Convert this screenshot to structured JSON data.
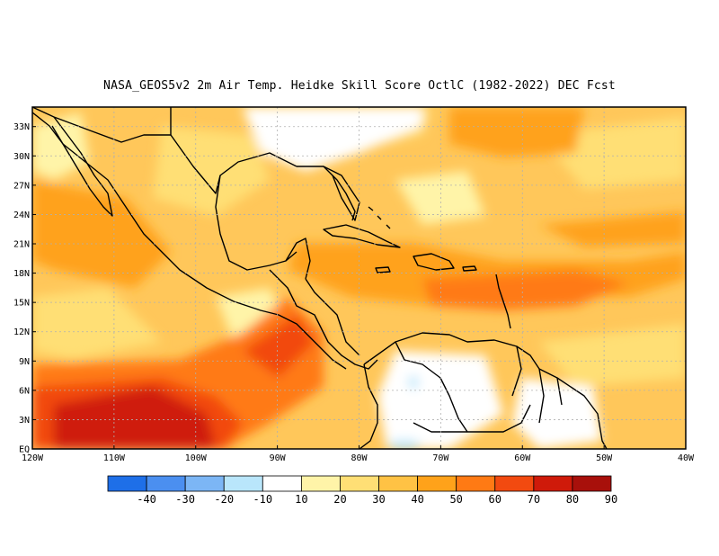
{
  "title": "NASA_GEOS5v2  2m Air Temp. Heidke Skill Score OctlC (1982-2022) DEC Fcst",
  "lat_labels": [
    "EQ",
    "3N",
    "6N",
    "9N",
    "12N",
    "15N",
    "18N",
    "21N",
    "24N",
    "27N",
    "30N",
    "33N"
  ],
  "lon_labels": [
    "120W",
    "110W",
    "100W",
    "90W",
    "80W",
    "70W",
    "60W",
    "50W",
    "40W"
  ],
  "colorbar": {
    "labels": [
      "-40",
      "-30",
      "-20",
      "-10",
      "10",
      "20",
      "30",
      "40",
      "50",
      "60",
      "70",
      "80",
      "90"
    ],
    "colors": [
      "#1e6fe8",
      "#4b8ff0",
      "#7cb6f5",
      "#b9e6fb",
      "#ffffff",
      "#fff4a8",
      "#ffdf75",
      "#ffc244",
      "#ffa21a",
      "#ff7a14",
      "#f24a10",
      "#cf1a0a",
      "#a8100b"
    ]
  },
  "map": {
    "lon_range": [
      -120,
      -40
    ],
    "lat_range": [
      0,
      35
    ],
    "background": "#ffc75a"
  }
}
